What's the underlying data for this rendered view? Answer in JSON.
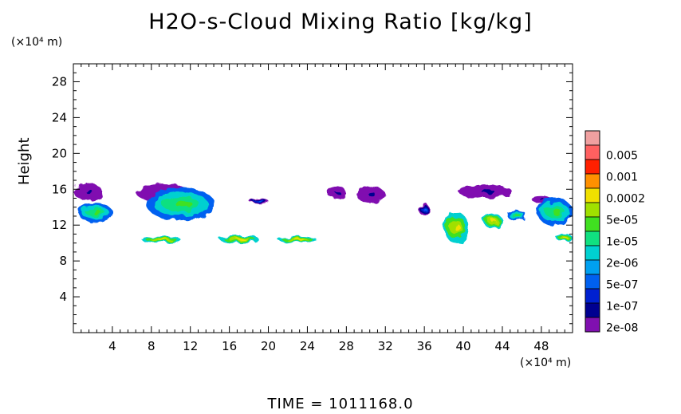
{
  "chart_data": {
    "type": "heatmap",
    "title": "H2O-s-Cloud Mixing Ratio [kg/kg]",
    "xunit": "(×10⁴ m)",
    "yunit": "(×10⁴ m)",
    "xlabel": "",
    "ylabel": "Height",
    "xlim": [
      0,
      51.2
    ],
    "ylim": [
      0,
      30
    ],
    "x_ticks": [
      "4",
      "8",
      "12",
      "16",
      "20",
      "24",
      "28",
      "32",
      "36",
      "40",
      "44",
      "48"
    ],
    "y_ticks": [
      "4",
      "8",
      "12",
      "16",
      "20",
      "24",
      "28"
    ],
    "colorbar": {
      "labels": [
        "0.005",
        "0.001",
        "0.0002",
        "5e-05",
        "1e-05",
        "2e-06",
        "5e-07",
        "1e-07",
        "2e-08"
      ],
      "colors": [
        "#f0a0a0",
        "#ff6060",
        "#ff2000",
        "#ff9000",
        "#f0e000",
        "#a0e000",
        "#40e020",
        "#10e080",
        "#00d0d0",
        "#00a0f0",
        "#0060f0",
        "#0020d0",
        "#000090",
        "#8010b0"
      ]
    },
    "cloud_regions": [
      {
        "x": [
          0.0,
          3.0
        ],
        "y": [
          14.8,
          16.6
        ],
        "level": "1e-07"
      },
      {
        "x": [
          0.5,
          4.0
        ],
        "y": [
          12.3,
          14.5
        ],
        "level": "5e-05"
      },
      {
        "x": [
          6.5,
          12.0
        ],
        "y": [
          14.5,
          16.6
        ],
        "level": "1e-07"
      },
      {
        "x": [
          7.5,
          14.5
        ],
        "y": [
          12.5,
          16.2
        ],
        "level": "5e-05"
      },
      {
        "x": [
          7.0,
          11.0
        ],
        "y": [
          10.0,
          10.8
        ],
        "level": "0.0002"
      },
      {
        "x": [
          15.0,
          19.0
        ],
        "y": [
          10.0,
          10.9
        ],
        "level": "0.0002"
      },
      {
        "x": [
          21.0,
          25.0
        ],
        "y": [
          10.0,
          10.7
        ],
        "level": "0.0002"
      },
      {
        "x": [
          18.0,
          20.0
        ],
        "y": [
          14.4,
          15.0
        ],
        "level": "5e-07"
      },
      {
        "x": [
          26.0,
          28.0
        ],
        "y": [
          15.0,
          16.3
        ],
        "level": "1e-07"
      },
      {
        "x": [
          29.0,
          32.0
        ],
        "y": [
          14.5,
          16.3
        ],
        "level": "1e-07"
      },
      {
        "x": [
          35.5,
          36.5
        ],
        "y": [
          13.0,
          14.5
        ],
        "level": "5e-07"
      },
      {
        "x": [
          38.0,
          40.5
        ],
        "y": [
          10.0,
          13.5
        ],
        "level": "0.0002"
      },
      {
        "x": [
          39.5,
          45.0
        ],
        "y": [
          15.0,
          16.5
        ],
        "level": "1e-07"
      },
      {
        "x": [
          42.0,
          44.0
        ],
        "y": [
          11.7,
          13.3
        ],
        "level": "0.0002"
      },
      {
        "x": [
          44.5,
          46.5
        ],
        "y": [
          12.5,
          13.6
        ],
        "level": "5e-05"
      },
      {
        "x": [
          47.0,
          49.0
        ],
        "y": [
          14.5,
          15.2
        ],
        "level": "1e-07"
      },
      {
        "x": [
          47.5,
          51.2
        ],
        "y": [
          12.0,
          15.0
        ],
        "level": "5e-05"
      },
      {
        "x": [
          49.5,
          51.2
        ],
        "y": [
          10.2,
          11.0
        ],
        "level": "0.0002"
      }
    ]
  },
  "time_label": "TIME =  1011168.0"
}
